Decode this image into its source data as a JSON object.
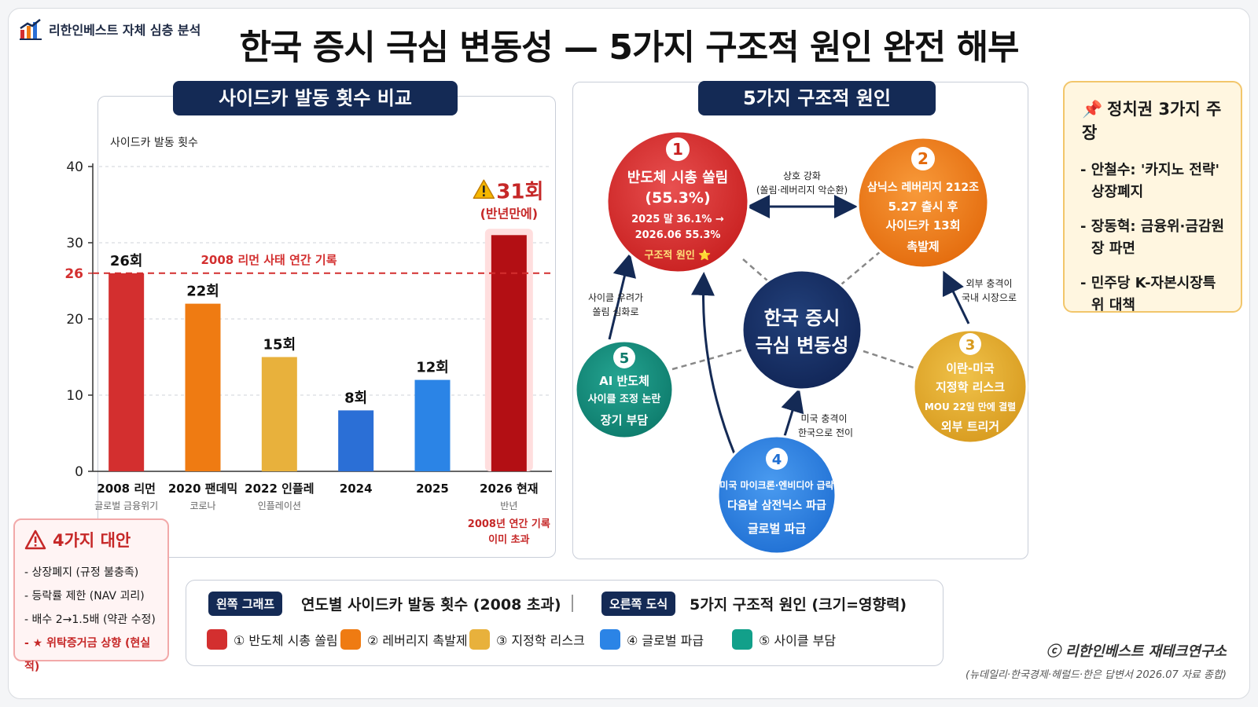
{
  "header": {
    "brand": "리한인베스트 자체 심층 분석",
    "title": "한국 증시 극심 변동성 — 5가지 구조적 원인 완전 해부"
  },
  "left_panel": {
    "title": "사이드카 발동 횟수 비교"
  },
  "right_panel": {
    "title": "5가지 구조적 원인"
  },
  "chart_data": {
    "type": "bar",
    "title": "사이드카 발동 횟수 비교",
    "ylabel": "사이드카 발동 횟수",
    "ylim": [
      0,
      40
    ],
    "yticks": [
      "0",
      "10",
      "20",
      "26",
      "30",
      "40"
    ],
    "ytick_values": [
      0,
      10,
      20,
      26,
      30,
      40
    ],
    "categories": [
      "2008 리먼",
      "2020 팬데믹",
      "2022 인플레",
      "2024",
      "2025",
      "2026 현재"
    ],
    "sublabels": [
      "글로벌 금융위기",
      "코로나",
      "인플레이션",
      "",
      "",
      "반년"
    ],
    "values": [
      26,
      22,
      15,
      8,
      12,
      31
    ],
    "value_labels": [
      "26회",
      "22회",
      "15회",
      "8회",
      "12회",
      "31회"
    ],
    "colors": [
      "#d32f2f",
      "#ef7b12",
      "#e8b13c",
      "#2b6fd6",
      "#2b84e6",
      "#b30f14"
    ],
    "reference_line": {
      "value": 26,
      "label": "2008 리먼 사태 연간 기록",
      "color": "#d32f2f"
    },
    "highlight": {
      "label": "(반년만에)",
      "note1": "2008년 연간 기록",
      "note2": "이미 초과",
      "warning_icon": "warning-icon"
    },
    "grid": true
  },
  "diagram": {
    "center": {
      "line1": "한국 증시",
      "line2": "극심 변동성"
    },
    "nodes": [
      {
        "num": "1",
        "l1": "반도체 시총 쏠림",
        "l2": "(55.3%)",
        "l3": "2025 말 36.1% →",
        "l4": "2026.06 55.3%",
        "l5": "구조적 원인 ⭐",
        "color": "#d32f2f"
      },
      {
        "num": "2",
        "l1": "삼닉스 레버리지 212조",
        "l2": "5.27 출시 후",
        "l3": "사이드카 13회",
        "l4": "촉발제",
        "color": "#ef7b12"
      },
      {
        "num": "3",
        "l1": "이란-미국",
        "l2": "지정학 리스크",
        "l3": "MOU 22일 만에 결렬",
        "l4": "외부 트리거",
        "color": "#e0a82c"
      },
      {
        "num": "4",
        "l1": "미국 마이크론·엔비디아 급락",
        "l2": "다음날 삼전닉스 파급",
        "l3": "글로벌 파급",
        "color": "#2b84e6"
      },
      {
        "num": "5",
        "l1": "AI 반도체",
        "l2": "사이클 조정 논란",
        "l3": "장기 부담",
        "color": "#12897a"
      }
    ],
    "edge_labels": {
      "mutual": "상호 강화",
      "mutual_sub": "(쏠림·레버리지 악순환)",
      "e3a": "외부 충격이",
      "e3b": "국내 시장으로",
      "e4a": "미국 충격이",
      "e4b": "한국으로 전이",
      "e5a": "사이클 우려가",
      "e5b": "쏠림 심화로"
    }
  },
  "opinion": {
    "title": "정치권 3가지 주장",
    "pin_icon": "pushpin-icon",
    "items": [
      "- 안철수: '카지노 전략' 상장폐지",
      "- 장동혁: 금융위·금감원장 파면",
      "- 민주당 K-자본시장특위 대책"
    ]
  },
  "alternatives": {
    "title": "4가지 대안",
    "items": [
      "- 상장폐지 (규정 불충족)",
      "- 등락률 제한 (NAV 괴리)",
      "- 배수 2→1.5배 (약관 수정)",
      "- ★ 위탁증거금 상향 (현실적)"
    ]
  },
  "legend": {
    "left_pill": "왼쪽 그래프",
    "left_text": "연도별 사이드카 발동 횟수 (2008 초과)",
    "right_pill": "오른쪽 도식",
    "right_text": "5가지 구조적 원인 (크기=영향력)",
    "items": [
      {
        "label": "① 반도체 시총 쏠림",
        "color": "#d32f2f"
      },
      {
        "label": "② 레버리지 촉발제",
        "color": "#ef7b12"
      },
      {
        "label": "③ 지정학 리스크",
        "color": "#e8b13c"
      },
      {
        "label": "④ 글로벌 파급",
        "color": "#2b84e6"
      },
      {
        "label": "⑤ 사이클 부담",
        "color": "#12a08a"
      }
    ]
  },
  "footer": {
    "copyright": "ⓒ 리한인베스트 재테크연구소",
    "source": "(뉴데일리·한국경제·헤럴드·한은 답변서 2026.07 자료 종합)"
  }
}
